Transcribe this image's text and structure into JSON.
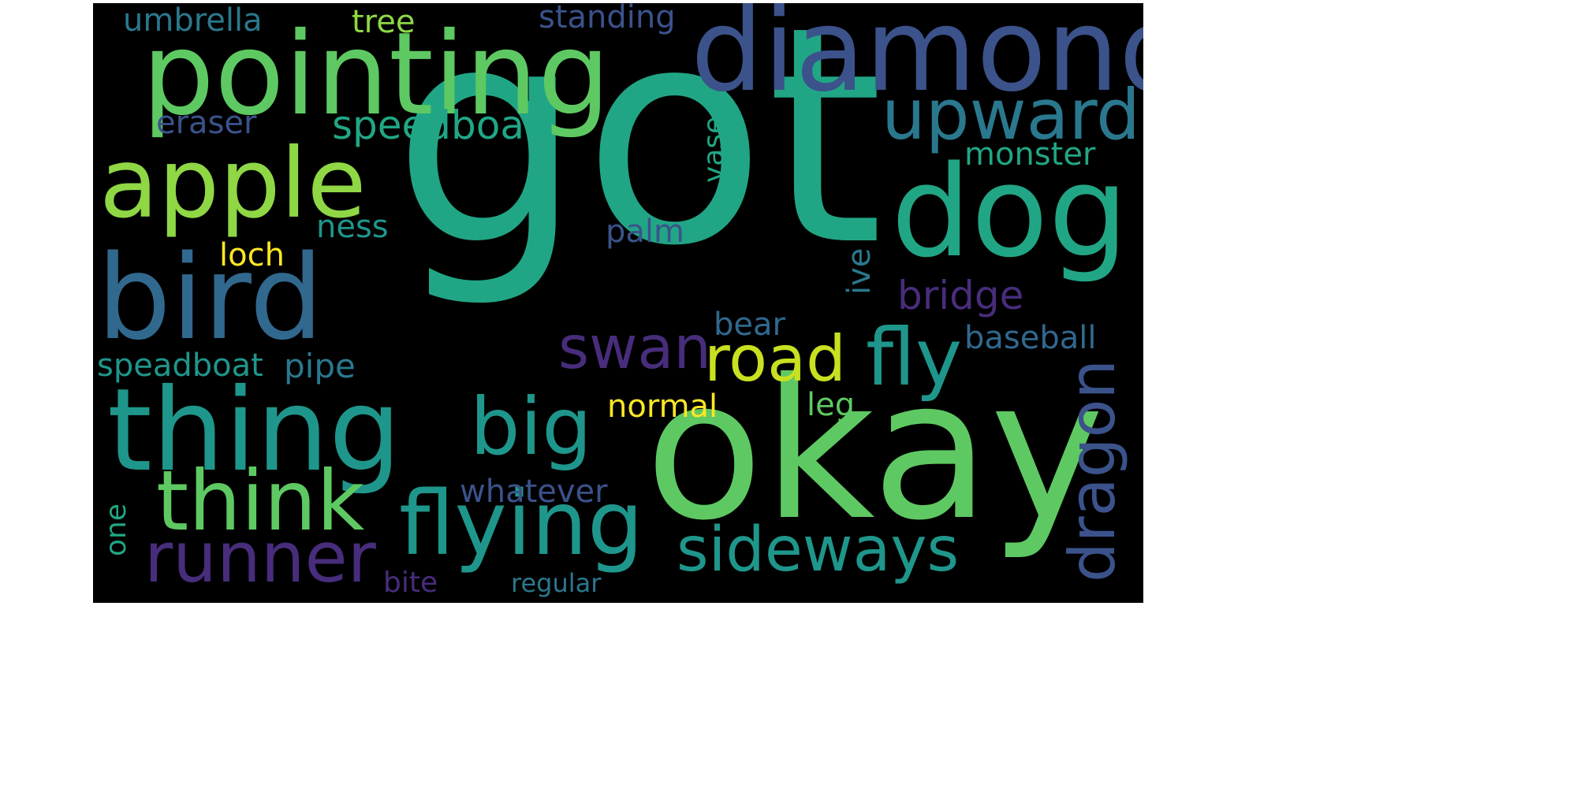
{
  "words": {
    "got": "got",
    "okay": "okay",
    "diamond": "diamond",
    "pointing": "pointing",
    "thing": "thing",
    "bird": "bird",
    "dog": "dog",
    "apple": "apple",
    "flying": "flying",
    "think": "think",
    "upward": "upward",
    "runner": "runner",
    "sideways": "sideways",
    "fly": "fly",
    "big": "big",
    "swan": "swan",
    "road": "road",
    "dragon": "dragon",
    "speedboat": "speedboat",
    "bridge": "bridge",
    "umbrella": "umbrella",
    "tree": "tree",
    "standing": "standing",
    "eraser": "eraser",
    "monster": "monster",
    "vase": "vase",
    "ness": "ness",
    "palm": "palm",
    "loch": "loch",
    "ive": "ive",
    "bear": "bear",
    "baseball": "baseball",
    "speadboat": "speadboat",
    "pipe": "pipe",
    "normal": "normal",
    "leg": "leg",
    "whatever": "whatever",
    "one": "one",
    "bite": "bite",
    "regular": "regular"
  },
  "colors": {
    "background": "#000000",
    "teal_green": "#21a685",
    "light_green": "#5ec962",
    "lime": "#8fd744",
    "yellow": "#fde725",
    "yellow_green": "#c8e020",
    "teal": "#1f968b",
    "blue_teal": "#2a788e",
    "blue": "#31688e",
    "indigo": "#3b528b",
    "purple": "#472d7b",
    "dark_purple": "#440154"
  }
}
